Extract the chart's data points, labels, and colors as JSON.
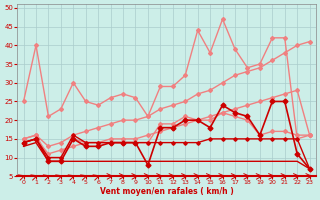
{
  "xlabel": "Vent moyen/en rafales ( km/h )",
  "xlim": [
    -0.5,
    23.5
  ],
  "ylim": [
    5,
    51
  ],
  "yticks": [
    5,
    10,
    15,
    20,
    25,
    30,
    35,
    40,
    45,
    50
  ],
  "xticks": [
    0,
    1,
    2,
    3,
    4,
    5,
    6,
    7,
    8,
    9,
    10,
    11,
    12,
    13,
    14,
    15,
    16,
    17,
    18,
    19,
    20,
    21,
    22,
    23
  ],
  "bg_color": "#cceee8",
  "grid_color": "#aacccc",
  "series": [
    {
      "x": [
        0,
        1,
        2,
        3,
        4,
        5,
        6,
        7,
        8,
        9,
        10,
        11,
        12,
        13,
        14,
        15,
        16,
        17,
        18,
        19,
        20,
        21,
        22,
        23
      ],
      "y": [
        25,
        40,
        21,
        23,
        30,
        25,
        24,
        26,
        27,
        26,
        21,
        29,
        29,
        32,
        44,
        38,
        47,
        39,
        34,
        35,
        42,
        42,
        15,
        16
      ],
      "color": "#f08080",
      "lw": 1.0,
      "marker": "D",
      "ms": 2.0
    },
    {
      "x": [
        0,
        1,
        2,
        3,
        4,
        5,
        6,
        7,
        8,
        9,
        10,
        11,
        12,
        13,
        14,
        15,
        16,
        17,
        18,
        19,
        20,
        21,
        22,
        23
      ],
      "y": [
        15,
        16,
        10,
        10,
        15,
        14,
        14,
        14,
        14,
        14,
        14,
        19,
        19,
        21,
        20,
        20,
        22,
        21,
        20,
        16,
        17,
        17,
        16,
        16
      ],
      "color": "#f08080",
      "lw": 1.0,
      "marker": "D",
      "ms": 2.0
    },
    {
      "x": [
        0,
        1,
        2,
        3,
        4,
        5,
        6,
        7,
        8,
        9,
        10,
        11,
        12,
        13,
        14,
        15,
        16,
        17,
        18,
        19,
        20,
        21,
        22,
        23
      ],
      "y": [
        15,
        16,
        13,
        14,
        16,
        17,
        18,
        19,
        20,
        20,
        21,
        23,
        24,
        25,
        27,
        28,
        30,
        32,
        33,
        34,
        36,
        38,
        40,
        41
      ],
      "color": "#f08080",
      "lw": 1.0,
      "marker": "D",
      "ms": 2.0
    },
    {
      "x": [
        0,
        1,
        2,
        3,
        4,
        5,
        6,
        7,
        8,
        9,
        10,
        11,
        12,
        13,
        14,
        15,
        16,
        17,
        18,
        19,
        20,
        21,
        22,
        23
      ],
      "y": [
        14,
        15,
        11,
        12,
        13,
        14,
        14,
        15,
        15,
        15,
        16,
        17,
        18,
        19,
        20,
        21,
        22,
        23,
        24,
        25,
        26,
        27,
        28,
        16
      ],
      "color": "#f08080",
      "lw": 1.0,
      "marker": "D",
      "ms": 2.0
    },
    {
      "x": [
        0,
        1,
        2,
        3,
        4,
        5,
        6,
        7,
        8,
        9,
        10,
        11,
        12,
        13,
        14,
        15,
        16,
        17,
        18,
        19,
        20,
        21,
        22,
        23
      ],
      "y": [
        14,
        15,
        9,
        9,
        15,
        13,
        13,
        14,
        14,
        14,
        8,
        18,
        18,
        20,
        20,
        18,
        24,
        22,
        21,
        16,
        25,
        25,
        11,
        7
      ],
      "color": "#cc0000",
      "lw": 1.2,
      "marker": "D",
      "ms": 2.5
    },
    {
      "x": [
        0,
        1,
        2,
        3,
        4,
        5,
        6,
        7,
        8,
        9,
        10,
        11,
        12,
        13,
        14,
        15,
        16,
        17,
        18,
        19,
        20,
        21,
        22,
        23
      ],
      "y": [
        14,
        15,
        10,
        10,
        16,
        14,
        14,
        14,
        14,
        14,
        14,
        14,
        14,
        14,
        14,
        15,
        15,
        15,
        15,
        15,
        15,
        15,
        15,
        7
      ],
      "color": "#cc0000",
      "lw": 1.0,
      "marker": "D",
      "ms": 1.8
    },
    {
      "x": [
        0,
        1,
        2,
        3,
        4,
        5,
        6,
        7,
        8,
        9,
        10,
        11,
        12,
        13,
        14,
        15,
        16,
        17,
        18,
        19,
        20,
        21,
        22,
        23
      ],
      "y": [
        13,
        14,
        9,
        9,
        9,
        9,
        9,
        9,
        9,
        9,
        9,
        9,
        9,
        9,
        9,
        9,
        9,
        9,
        9,
        9,
        9,
        9,
        9,
        7
      ],
      "color": "#cc0000",
      "lw": 1.0,
      "marker": null,
      "ms": 0
    }
  ],
  "arrow_angles_deg": [
    50,
    50,
    50,
    50,
    50,
    50,
    50,
    10,
    10,
    10,
    10,
    10,
    10,
    10,
    10,
    10,
    10,
    10,
    10,
    10,
    10,
    10,
    10,
    10
  ]
}
